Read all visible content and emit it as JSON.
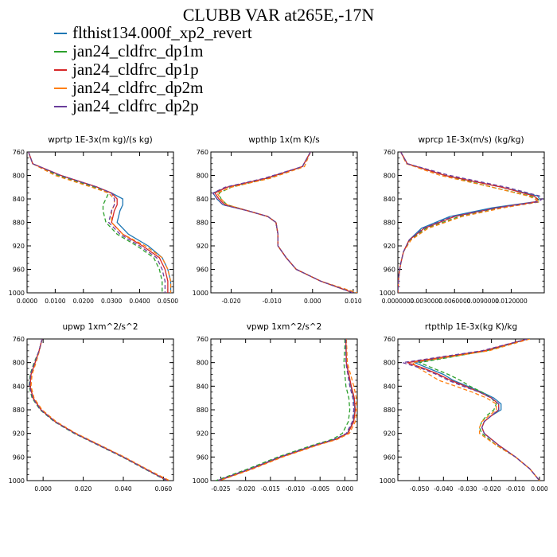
{
  "page": {
    "title": "CLUBB VAR at265E,-17N"
  },
  "legend": [
    {
      "label": "flthist134.000f_xp2_revert",
      "color": "#1f77b4",
      "dash": "solid"
    },
    {
      "label": "jan24_cldfrc_dp1m",
      "color": "#2ca02c",
      "dash": "dashed"
    },
    {
      "label": "jan24_cldfrc_dp1p",
      "color": "#d62728",
      "dash": "solid"
    },
    {
      "label": "jan24_cldfrc_dp2m",
      "color": "#ff7f0e",
      "dash": "dashed"
    },
    {
      "label": "jan24_cldfrc_dp2p",
      "color": "#6a3d9a",
      "dash": "dashed"
    }
  ],
  "chart_data": [
    {
      "type": "line",
      "id": "wprtp",
      "title": "wprtp  1E-3x(m kg)/(s kg)",
      "xlim": [
        0,
        0.052
      ],
      "ylim": [
        760,
        1000
      ],
      "y_reversed": true,
      "xticks": [
        0.0,
        0.01,
        0.02,
        0.03,
        0.04,
        0.05
      ],
      "xticklabels": [
        "0.0000",
        "0.0100",
        "0.0200",
        "0.0300",
        "0.0400",
        "0.0500"
      ],
      "yticks": [
        760,
        800,
        840,
        880,
        920,
        960,
        1000
      ],
      "y": [
        760,
        780,
        800,
        820,
        830,
        840,
        850,
        860,
        880,
        900,
        920,
        940,
        960,
        980,
        1000
      ],
      "series": [
        {
          "name": "flthist134.000f_xp2_revert",
          "x": [
            0.0005,
            0.002,
            0.012,
            0.025,
            0.03,
            0.034,
            0.034,
            0.033,
            0.032,
            0.036,
            0.043,
            0.048,
            0.05,
            0.051,
            0.051
          ]
        },
        {
          "name": "jan24_cldfrc_dp1m",
          "x": [
            0.0005,
            0.002,
            0.011,
            0.024,
            0.029,
            0.028,
            0.027,
            0.027,
            0.028,
            0.032,
            0.039,
            0.045,
            0.047,
            0.048,
            0.048
          ]
        },
        {
          "name": "jan24_cldfrc_dp1p",
          "x": [
            0.0005,
            0.002,
            0.012,
            0.025,
            0.03,
            0.032,
            0.032,
            0.031,
            0.03,
            0.034,
            0.041,
            0.047,
            0.049,
            0.05,
            0.05
          ]
        },
        {
          "name": "jan24_cldfrc_dp2m",
          "x": [
            0.0005,
            0.002,
            0.01,
            0.023,
            0.029,
            0.031,
            0.031,
            0.03,
            0.03,
            0.034,
            0.042,
            0.048,
            0.05,
            0.051,
            0.051
          ]
        },
        {
          "name": "jan24_cldfrc_dp2p",
          "x": [
            0.0005,
            0.002,
            0.012,
            0.025,
            0.03,
            0.031,
            0.031,
            0.03,
            0.029,
            0.033,
            0.04,
            0.046,
            0.048,
            0.049,
            0.049
          ]
        }
      ]
    },
    {
      "type": "line",
      "id": "wpthlp",
      "title": "wpthlp  1x(m K)/s",
      "xlim": [
        -0.025,
        0.011
      ],
      "ylim": [
        760,
        1000
      ],
      "y_reversed": true,
      "xticks": [
        -0.02,
        -0.01,
        0.0,
        0.01
      ],
      "xticklabels": [
        "-0.020",
        "-0.010",
        "0.000",
        "0.010"
      ],
      "yticks": [
        760,
        800,
        840,
        880,
        920,
        960,
        1000
      ],
      "y": [
        760,
        785,
        805,
        820,
        830,
        840,
        850,
        860,
        870,
        880,
        900,
        920,
        940,
        960,
        980,
        1000
      ],
      "series": [
        {
          "name": "flthist134.000f_xp2_revert",
          "x": [
            -0.0005,
            -0.0025,
            -0.0115,
            -0.021,
            -0.0245,
            -0.0235,
            -0.022,
            -0.016,
            -0.011,
            -0.009,
            -0.0085,
            -0.0085,
            -0.0065,
            -0.004,
            0.002,
            0.01
          ]
        },
        {
          "name": "jan24_cldfrc_dp1m",
          "x": [
            -0.0005,
            -0.0025,
            -0.011,
            -0.02,
            -0.023,
            -0.0225,
            -0.021,
            -0.016,
            -0.011,
            -0.009,
            -0.0085,
            -0.0085,
            -0.0065,
            -0.004,
            0.002,
            0.01
          ]
        },
        {
          "name": "jan24_cldfrc_dp1p",
          "x": [
            -0.0005,
            -0.0025,
            -0.0115,
            -0.021,
            -0.024,
            -0.023,
            -0.0215,
            -0.016,
            -0.011,
            -0.009,
            -0.0085,
            -0.0085,
            -0.0065,
            -0.004,
            0.002,
            0.01
          ]
        },
        {
          "name": "jan24_cldfrc_dp2m",
          "x": [
            -0.0005,
            -0.002,
            -0.0105,
            -0.02,
            -0.0235,
            -0.0225,
            -0.021,
            -0.016,
            -0.011,
            -0.009,
            -0.0085,
            -0.0085,
            -0.0065,
            -0.004,
            0.002,
            0.011
          ]
        },
        {
          "name": "jan24_cldfrc_dp2p",
          "x": [
            -0.0005,
            -0.0025,
            -0.012,
            -0.0215,
            -0.0245,
            -0.0235,
            -0.022,
            -0.016,
            -0.011,
            -0.009,
            -0.0085,
            -0.0085,
            -0.0065,
            -0.004,
            0.002,
            0.01
          ]
        }
      ]
    },
    {
      "type": "line",
      "id": "wprcp",
      "title": "wprcp  1E-3x(m/s) (kg/kg)",
      "xlim": [
        0,
        0.0155
      ],
      "ylim": [
        760,
        1000
      ],
      "y_reversed": true,
      "xticks": [
        0.0,
        0.003,
        0.006,
        0.009,
        0.012
      ],
      "xticklabels": [
        "0.0000000",
        "0.0030000",
        "0.0060000",
        "0.0090000",
        "0.0120000"
      ],
      "yticks": [
        760,
        800,
        840,
        880,
        920,
        960,
        1000
      ],
      "y": [
        760,
        780,
        800,
        820,
        835,
        840,
        845,
        855,
        870,
        890,
        910,
        930,
        950,
        970,
        1000
      ],
      "series": [
        {
          "name": "flthist134.000f_xp2_revert",
          "x": [
            0.0003,
            0.001,
            0.005,
            0.011,
            0.0148,
            0.015,
            0.0145,
            0.01,
            0.0055,
            0.0025,
            0.0012,
            0.0006,
            0.0003,
            0.0001,
            0.0
          ]
        },
        {
          "name": "jan24_cldfrc_dp1m",
          "x": [
            0.0003,
            0.001,
            0.005,
            0.01,
            0.014,
            0.0148,
            0.015,
            0.011,
            0.0065,
            0.003,
            0.0013,
            0.0006,
            0.0003,
            0.0001,
            0.0
          ]
        },
        {
          "name": "jan24_cldfrc_dp1p",
          "x": [
            0.0003,
            0.001,
            0.005,
            0.011,
            0.0144,
            0.0148,
            0.0146,
            0.0105,
            0.006,
            0.0028,
            0.0012,
            0.0006,
            0.0003,
            0.0001,
            0.0
          ]
        },
        {
          "name": "jan24_cldfrc_dp2m",
          "x": [
            0.0003,
            0.0009,
            0.0045,
            0.01,
            0.0138,
            0.0145,
            0.015,
            0.0112,
            0.0068,
            0.0032,
            0.0014,
            0.0006,
            0.0003,
            0.0001,
            0.0
          ]
        },
        {
          "name": "jan24_cldfrc_dp2p",
          "x": [
            0.0003,
            0.001,
            0.0055,
            0.0115,
            0.015,
            0.0153,
            0.0148,
            0.0105,
            0.0058,
            0.0027,
            0.0012,
            0.0006,
            0.0003,
            0.0001,
            0.0
          ]
        }
      ]
    },
    {
      "type": "line",
      "id": "upwp",
      "title": "upwp  1xm^2/s^2",
      "xlim": [
        -0.008,
        0.065
      ],
      "ylim": [
        760,
        1000
      ],
      "y_reversed": true,
      "xticks": [
        0.0,
        0.02,
        0.04,
        0.06
      ],
      "xticklabels": [
        "0.000",
        "0.020",
        "0.040",
        "0.060"
      ],
      "yticks": [
        760,
        800,
        840,
        880,
        920,
        960,
        1000
      ],
      "y": [
        760,
        780,
        800,
        820,
        840,
        860,
        880,
        900,
        920,
        940,
        960,
        980,
        1000
      ],
      "series": [
        {
          "name": "flthist134.000f_xp2_revert",
          "x": [
            -0.0005,
            -0.002,
            -0.004,
            -0.006,
            -0.0065,
            -0.005,
            -0.001,
            0.006,
            0.016,
            0.028,
            0.04,
            0.051,
            0.062
          ]
        },
        {
          "name": "jan24_cldfrc_dp1m",
          "x": [
            -0.0005,
            -0.002,
            -0.0045,
            -0.0065,
            -0.007,
            -0.0055,
            -0.0015,
            0.0055,
            0.0155,
            0.0275,
            0.0395,
            0.0505,
            0.0615
          ]
        },
        {
          "name": "jan24_cldfrc_dp1p",
          "x": [
            -0.0005,
            -0.002,
            -0.004,
            -0.006,
            -0.0065,
            -0.005,
            -0.001,
            0.006,
            0.016,
            0.028,
            0.04,
            0.051,
            0.062
          ]
        },
        {
          "name": "jan24_cldfrc_dp2m",
          "x": [
            -0.0005,
            -0.0018,
            -0.0035,
            -0.0055,
            -0.006,
            -0.0045,
            -0.0005,
            0.0065,
            0.0165,
            0.0285,
            0.0405,
            0.0515,
            0.063
          ]
        },
        {
          "name": "jan24_cldfrc_dp2p",
          "x": [
            -0.0005,
            -0.002,
            -0.0042,
            -0.0062,
            -0.0068,
            -0.0052,
            -0.0012,
            0.0058,
            0.0158,
            0.0278,
            0.0398,
            0.0508,
            0.0618
          ]
        }
      ]
    },
    {
      "type": "line",
      "id": "vpwp",
      "title": "vpwp  1xm^2/s^2",
      "xlim": [
        -0.027,
        0.0025
      ],
      "ylim": [
        760,
        1000
      ],
      "y_reversed": true,
      "xticks": [
        -0.025,
        -0.02,
        -0.015,
        -0.01,
        -0.005,
        0.0
      ],
      "xticklabels": [
        "-0.025",
        "-0.020",
        "-0.015",
        "-0.010",
        "-0.005",
        "0.000"
      ],
      "yticks": [
        760,
        800,
        840,
        880,
        920,
        960,
        1000
      ],
      "y": [
        760,
        800,
        840,
        860,
        880,
        900,
        920,
        930,
        940,
        960,
        980,
        1000
      ],
      "series": [
        {
          "name": "flthist134.000f_xp2_revert",
          "x": [
            0.0002,
            0.0003,
            0.0012,
            0.0018,
            0.002,
            0.0017,
            0.0005,
            -0.002,
            -0.006,
            -0.013,
            -0.019,
            -0.0255
          ]
        },
        {
          "name": "jan24_cldfrc_dp1m",
          "x": [
            0.0001,
            -0.0002,
            0.0002,
            0.0008,
            0.001,
            0.0007,
            -0.0005,
            -0.0025,
            -0.0065,
            -0.0135,
            -0.0195,
            -0.026
          ]
        },
        {
          "name": "jan24_cldfrc_dp1p",
          "x": [
            0.0002,
            0.0003,
            0.0013,
            0.0019,
            0.0021,
            0.0018,
            0.0006,
            -0.0018,
            -0.0058,
            -0.0128,
            -0.0188,
            -0.0254
          ]
        },
        {
          "name": "jan24_cldfrc_dp2m",
          "x": [
            0.0003,
            0.0005,
            0.0018,
            0.0023,
            0.0024,
            0.0021,
            0.0009,
            -0.0015,
            -0.0055,
            -0.0125,
            -0.0185,
            -0.0252
          ]
        },
        {
          "name": "jan24_cldfrc_dp2p",
          "x": [
            0.0002,
            0.0002,
            0.001,
            0.0016,
            0.0018,
            0.0015,
            0.0003,
            -0.0021,
            -0.0061,
            -0.0131,
            -0.0191,
            -0.0257
          ]
        }
      ]
    },
    {
      "type": "line",
      "id": "rtpthlp",
      "title": "rtpthlp  1E-3x(kg K)/kg",
      "xlim": [
        -0.059,
        0.002
      ],
      "ylim": [
        760,
        1000
      ],
      "y_reversed": true,
      "xticks": [
        -0.05,
        -0.04,
        -0.03,
        -0.02,
        -0.01,
        0.0
      ],
      "xticklabels": [
        "-0.050",
        "-0.040",
        "-0.030",
        "-0.020",
        "-0.010",
        "0.000"
      ],
      "yticks": [
        760,
        800,
        840,
        880,
        920,
        960,
        1000
      ],
      "y": [
        760,
        780,
        800,
        810,
        820,
        830,
        840,
        850,
        860,
        870,
        880,
        890,
        900,
        910,
        920,
        940,
        960,
        980,
        1000
      ],
      "series": [
        {
          "name": "flthist134.000f_xp2_revert",
          "x": [
            -0.005,
            -0.022,
            -0.052,
            -0.046,
            -0.04,
            -0.036,
            -0.03,
            -0.024,
            -0.019,
            -0.016,
            -0.016,
            -0.02,
            -0.023,
            -0.024,
            -0.023,
            -0.017,
            -0.01,
            -0.004,
            0.0
          ]
        },
        {
          "name": "jan24_cldfrc_dp1m",
          "x": [
            -0.005,
            -0.022,
            -0.05,
            -0.044,
            -0.038,
            -0.033,
            -0.029,
            -0.024,
            -0.02,
            -0.018,
            -0.019,
            -0.022,
            -0.024,
            -0.025,
            -0.024,
            -0.018,
            -0.01,
            -0.004,
            0.0
          ]
        },
        {
          "name": "jan24_cldfrc_dp1p",
          "x": [
            -0.005,
            -0.023,
            -0.055,
            -0.048,
            -0.042,
            -0.037,
            -0.031,
            -0.025,
            -0.02,
            -0.017,
            -0.017,
            -0.02,
            -0.023,
            -0.024,
            -0.023,
            -0.017,
            -0.01,
            -0.004,
            0.0
          ]
        },
        {
          "name": "jan24_cldfrc_dp2m",
          "x": [
            -0.004,
            -0.021,
            -0.053,
            -0.05,
            -0.046,
            -0.042,
            -0.035,
            -0.028,
            -0.022,
            -0.018,
            -0.018,
            -0.021,
            -0.024,
            -0.025,
            -0.025,
            -0.018,
            -0.01,
            -0.004,
            0.0
          ]
        },
        {
          "name": "jan24_cldfrc_dp2p",
          "x": [
            -0.005,
            -0.024,
            -0.057,
            -0.049,
            -0.043,
            -0.038,
            -0.032,
            -0.025,
            -0.02,
            -0.017,
            -0.017,
            -0.02,
            -0.023,
            -0.024,
            -0.023,
            -0.017,
            -0.01,
            -0.004,
            0.0
          ]
        }
      ]
    }
  ]
}
